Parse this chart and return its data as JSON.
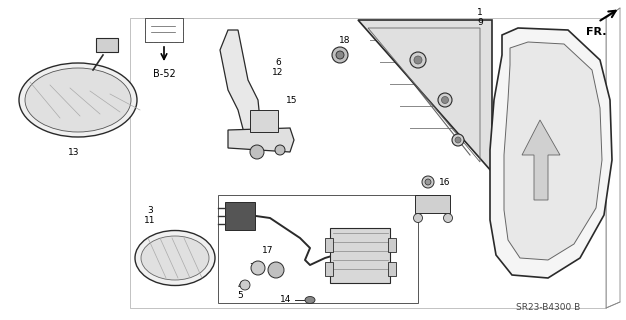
{
  "diagram_code": "SR23-B4300 B",
  "background_color": "#ffffff",
  "figsize": [
    6.26,
    3.2
  ],
  "dpi": 100,
  "line_color": "#2a2a2a",
  "gray_fill": "#d0d0d0",
  "dark_gray": "#888888"
}
